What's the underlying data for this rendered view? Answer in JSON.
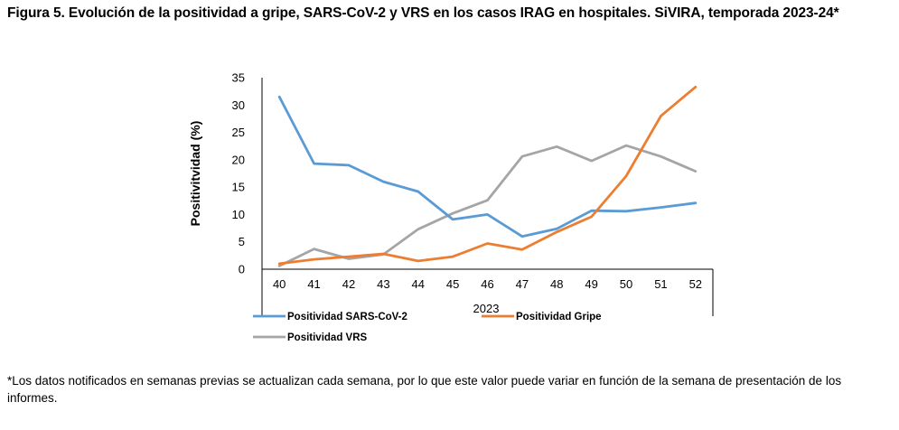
{
  "title": "Figura 5. Evolución de la positividad a gripe, SARS-CoV-2 y VRS en los casos IRAG en hospitales. SiVIRA, temporada 2023-24*",
  "footnote": "*Los datos notificados en semanas previas se actualizan cada semana, por lo que este valor puede variar en función de la semana de presentación de los informes.",
  "chart_data": {
    "type": "line",
    "title": "",
    "xlabel": "2023",
    "ylabel": "Positivitvidad (%)",
    "categories": [
      "40",
      "41",
      "42",
      "43",
      "44",
      "45",
      "46",
      "47",
      "48",
      "49",
      "50",
      "51",
      "52"
    ],
    "ylim": [
      0,
      35
    ],
    "yticks": [
      0,
      5,
      10,
      15,
      20,
      25,
      30,
      35
    ],
    "grid": false,
    "legend_position": "bottom",
    "series": [
      {
        "name": "Positividad SARS-CoV-2",
        "color": "#5b9bd5",
        "values": [
          31.5,
          19.3,
          19.0,
          16.0,
          14.2,
          9.1,
          10.0,
          6.0,
          7.4,
          10.7,
          10.6,
          11.3,
          12.1
        ]
      },
      {
        "name": "Positividad Gripe",
        "color": "#ed7d31",
        "values": [
          1.0,
          1.8,
          2.3,
          2.8,
          1.5,
          2.3,
          4.7,
          3.6,
          6.8,
          9.6,
          17.0,
          28.0,
          33.3
        ]
      },
      {
        "name": "Positividad VRS",
        "color": "#a5a5a5",
        "values": [
          0.6,
          3.7,
          1.9,
          2.7,
          7.3,
          10.2,
          12.6,
          20.6,
          22.4,
          19.8,
          22.6,
          20.6,
          17.9
        ]
      }
    ]
  }
}
